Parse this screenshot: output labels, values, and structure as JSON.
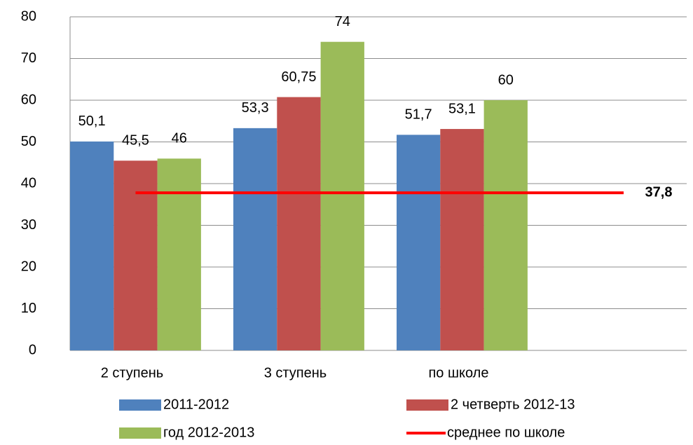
{
  "chart_data": {
    "type": "bar",
    "categories": [
      "2 ступень",
      "3 ступень",
      "по школе"
    ],
    "series": [
      {
        "name": "2011-2012",
        "color": "#4f81bd",
        "values": [
          50.1,
          53.3,
          51.7
        ],
        "value_labels": [
          "50,1",
          "53,3",
          "51,7"
        ]
      },
      {
        "name": "2 четверть 2012-13",
        "color": "#c0504d",
        "values": [
          45.5,
          60.75,
          53.1
        ],
        "value_labels": [
          "45,5",
          "60,75",
          "53,1"
        ]
      },
      {
        "name": "год 2012-2013",
        "color": "#9bbb59",
        "values": [
          46,
          74,
          60
        ],
        "value_labels": [
          "46",
          "74",
          "60"
        ]
      }
    ],
    "average": {
      "name": "среднее по школе",
      "color": "#ff0000",
      "value": 37.8,
      "value_label": "37,8"
    },
    "ylim": [
      0,
      80
    ],
    "yticks": [
      0,
      10,
      20,
      30,
      40,
      50,
      60,
      70,
      80
    ],
    "grid": true
  }
}
